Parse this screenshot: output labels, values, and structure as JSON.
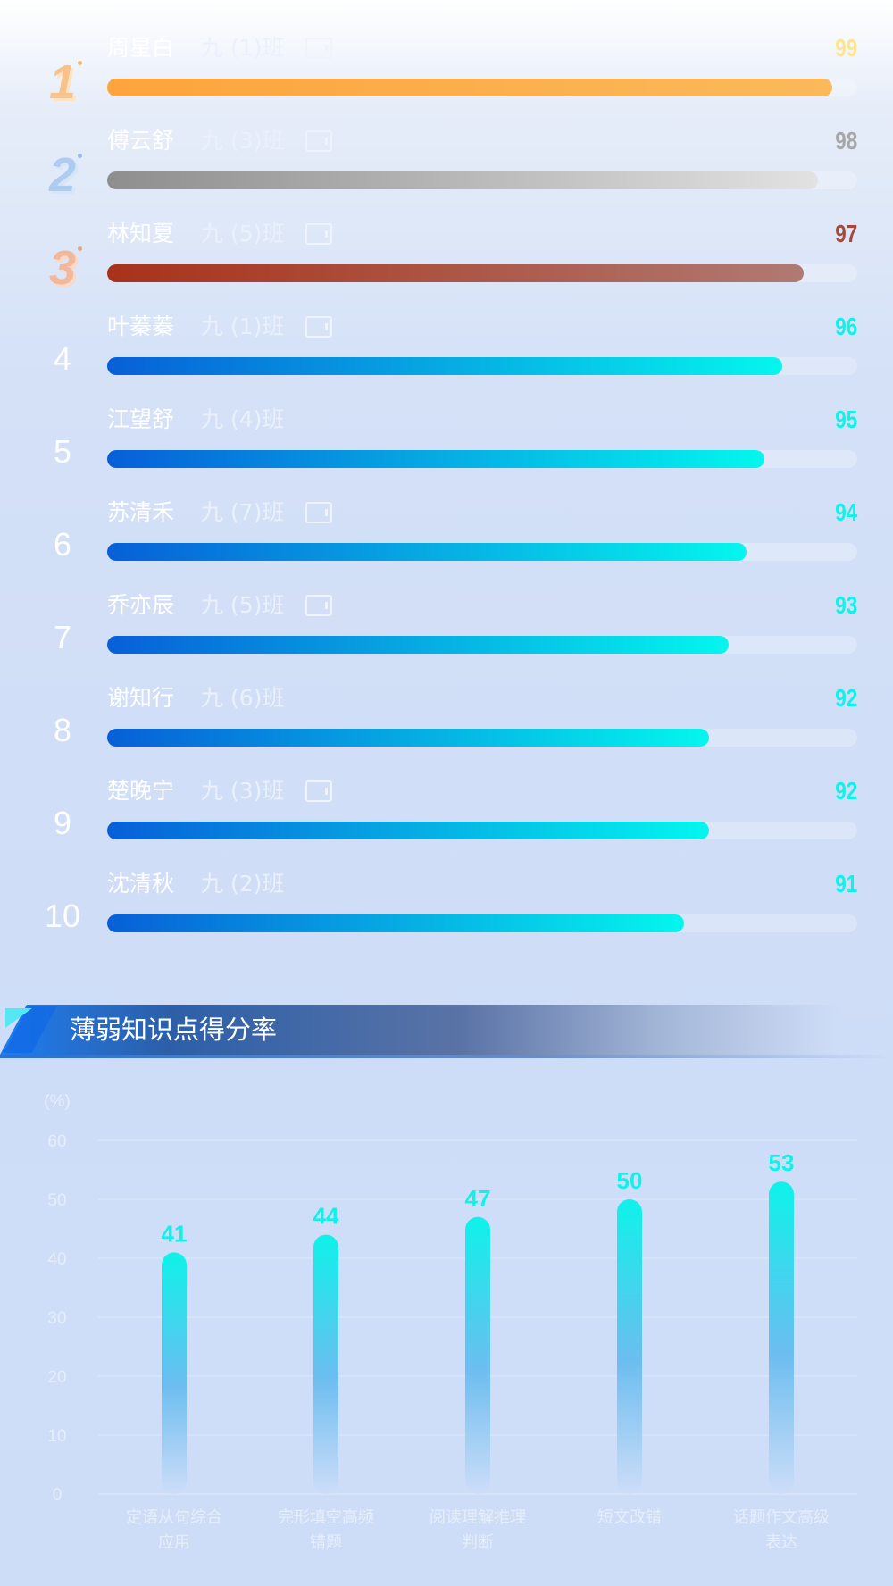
{
  "ranking": {
    "max_score": 100,
    "rows": [
      {
        "rank": "1",
        "name": "周星白",
        "class": "九 (1)班",
        "has_tag": true,
        "score": "99",
        "medal": "gold",
        "score_color": "#fbe58e"
      },
      {
        "rank": "2",
        "name": "傅云舒",
        "class": "九 (3)班",
        "has_tag": true,
        "score": "98",
        "medal": "silver",
        "score_color": "#a7a7a7"
      },
      {
        "rank": "3",
        "name": "林知夏",
        "class": "九 (5)班",
        "has_tag": true,
        "score": "97",
        "medal": "bronze",
        "score_color": "#a6493a"
      },
      {
        "rank": "4",
        "name": "叶蓁蓁",
        "class": "九 (1)班",
        "has_tag": true,
        "score": "96",
        "medal": "",
        "score_color": "#0ef2ea"
      },
      {
        "rank": "5",
        "name": "江望舒",
        "class": "九 (4)班",
        "has_tag": false,
        "score": "95",
        "medal": "",
        "score_color": "#0ef2ea"
      },
      {
        "rank": "6",
        "name": "苏清禾",
        "class": "九 (7)班",
        "has_tag": true,
        "score": "94",
        "medal": "",
        "score_color": "#0ef2ea"
      },
      {
        "rank": "7",
        "name": "乔亦辰",
        "class": "九 (5)班",
        "has_tag": true,
        "score": "93",
        "medal": "",
        "score_color": "#0ef2ea"
      },
      {
        "rank": "8",
        "name": "谢知行",
        "class": "九 (6)班",
        "has_tag": false,
        "score": "92",
        "medal": "",
        "score_color": "#0ef2ea"
      },
      {
        "rank": "9",
        "name": "楚晚宁",
        "class": "九 (3)班",
        "has_tag": true,
        "score": "92",
        "medal": "",
        "score_color": "#0ef2ea"
      },
      {
        "rank": "10",
        "name": "沈清秋",
        "class": "九 (2)班",
        "has_tag": false,
        "score": "91",
        "medal": "",
        "score_color": "#0ef2ea"
      }
    ],
    "bar_fraction": [
      0.967,
      0.948,
      0.929,
      0.9,
      0.876,
      0.852,
      0.829,
      0.802,
      0.802,
      0.769
    ]
  },
  "section": {
    "title": "薄弱知识点得分率"
  },
  "chart_data": {
    "type": "bar",
    "unit_label": "(%)",
    "categories": [
      [
        "定语从句综合",
        "应用"
      ],
      [
        "完形填空高频",
        "错题"
      ],
      [
        "阅读理解推理",
        "判断"
      ],
      [
        "短文改错"
      ],
      [
        "话题作文高级",
        "表达"
      ]
    ],
    "values": [
      41,
      44,
      47,
      50,
      53
    ],
    "value_labels": [
      "41",
      "44",
      "47",
      "50",
      "53"
    ],
    "ylim": [
      0,
      60
    ],
    "yticks": [
      "0",
      "10",
      "20",
      "30",
      "40",
      "50",
      "60"
    ],
    "grid": true,
    "bar_color_top": "#0ef2ea",
    "bar_color_bottom": "#cdddf8"
  }
}
